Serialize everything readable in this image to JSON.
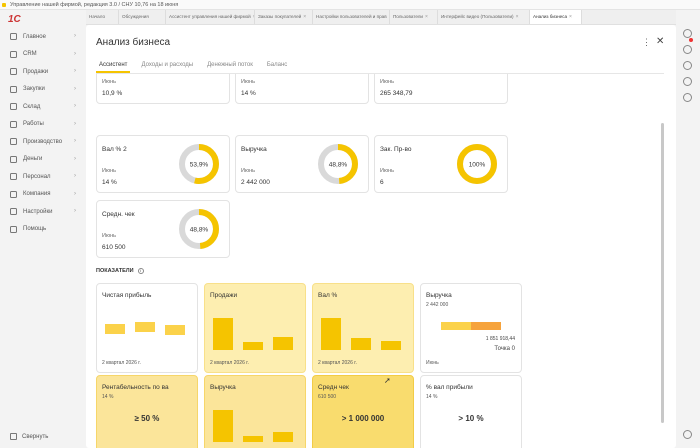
{
  "window_title": "Управление нашей фирмой, редакция 3.0 / СНУ 10,76 на 18 июня",
  "logo_text": "1С",
  "sidebar": {
    "items": [
      {
        "label": "Главное",
        "icon": "home-icon"
      },
      {
        "label": "CRM",
        "icon": "crm-icon"
      },
      {
        "label": "Продажи",
        "icon": "sales-icon"
      },
      {
        "label": "Закупки",
        "icon": "purchases-icon"
      },
      {
        "label": "Склад",
        "icon": "warehouse-icon"
      },
      {
        "label": "Работы",
        "icon": "works-icon"
      },
      {
        "label": "Производство",
        "icon": "production-icon"
      },
      {
        "label": "Деньги",
        "icon": "money-icon"
      },
      {
        "label": "Персонал",
        "icon": "staff-icon"
      },
      {
        "label": "Компания",
        "icon": "company-icon"
      },
      {
        "label": "Настройки",
        "icon": "settings-icon"
      },
      {
        "label": "Помощь",
        "icon": "help-icon"
      }
    ],
    "collapse_label": "Свернуть"
  },
  "tabs": [
    {
      "label": "Начало",
      "active": false
    },
    {
      "label": "Обсуждения",
      "active": false
    },
    {
      "label": "Ассистент управления нашей фирмой",
      "active": false
    },
    {
      "label": "Заказы покупателей",
      "active": false
    },
    {
      "label": "Настройки пользователей и прав",
      "active": false
    },
    {
      "label": "Пользователи",
      "active": false
    },
    {
      "label": "Интерфейс видео (Пользователи)",
      "active": false
    },
    {
      "label": "Анализ бизнеса",
      "active": true
    }
  ],
  "panel": {
    "title": "Анализ бизнеса",
    "subtabs": [
      {
        "label": "Ассистент",
        "active": true
      },
      {
        "label": "Доходы и расходы",
        "active": false
      },
      {
        "label": "Денежный поток",
        "active": false
      },
      {
        "label": "Баланс",
        "active": false
      }
    ]
  },
  "kpi_cards": [
    {
      "label": "",
      "period": "Июнь",
      "value": "10,9 %",
      "percent": null,
      "percent_value": 0.75
    },
    {
      "label": "",
      "period": "Июнь",
      "value": "14 %",
      "percent": null,
      "percent_value": 0.75
    },
    {
      "label": "",
      "period": "Июнь",
      "value": "265 348,79",
      "percent": null,
      "percent_value": 0.45
    },
    {
      "label": "Вал % 2",
      "period": "Июнь",
      "value": "14 %",
      "percent": "53,9%",
      "percent_value": 0.539
    },
    {
      "label": "Выручка",
      "period": "Июнь",
      "value": "2 442 000",
      "percent": "48,8%",
      "percent_value": 0.488
    },
    {
      "label": "Зак. Пр-во",
      "period": "Июнь",
      "value": "6",
      "percent": "100%",
      "percent_value": 1.0
    },
    {
      "label": "Средн. чек",
      "period": "Июнь",
      "value": "610 500",
      "percent": "48,8%",
      "percent_value": 0.488
    }
  ],
  "section_title": "ПОКАЗАТЕЛИ",
  "indicators": [
    {
      "title": "Чистая прибыль",
      "subtitle": "",
      "footer": "2 квартал 2026 г.",
      "big": "",
      "bars": [
        0.5,
        0.7,
        0.45
      ]
    },
    {
      "title": "Продажи",
      "subtitle": "",
      "footer": "2 квартал 2026 г.",
      "big": "",
      "bars": [
        1.0,
        0.25,
        0.4
      ]
    },
    {
      "title": "Вал %",
      "subtitle": "",
      "footer": "2 квартал 2026 г.",
      "big": "",
      "bars": [
        1.0,
        0.38,
        0.28
      ]
    },
    {
      "title": "Выручка",
      "subtitle": "2 442 000",
      "footer": "Июнь",
      "big": "",
      "bars": [],
      "note1": "1 851 918,44",
      "note2": "Точка 0"
    },
    {
      "title": "Рентабельность по ва",
      "subtitle": "14 %",
      "footer": "Июнь",
      "big": "≥ 50 %",
      "bars": []
    },
    {
      "title": "Выручка",
      "subtitle": "",
      "footer": "2 квартал 2026 г.",
      "big": "",
      "bars": [
        1.0,
        0.2,
        0.3
      ]
    },
    {
      "title": "Средн чек",
      "subtitle": "610 500",
      "footer": "Июнь",
      "big": "> 1 000 000",
      "bars": []
    },
    {
      "title": "% вал прибыли",
      "subtitle": "14 %",
      "footer": "Июнь",
      "big": "> 10 %",
      "bars": []
    }
  ],
  "colors": {
    "accent": "#f5c400",
    "donut_track": "#d9d9d9",
    "orange": "#f6a33c"
  }
}
